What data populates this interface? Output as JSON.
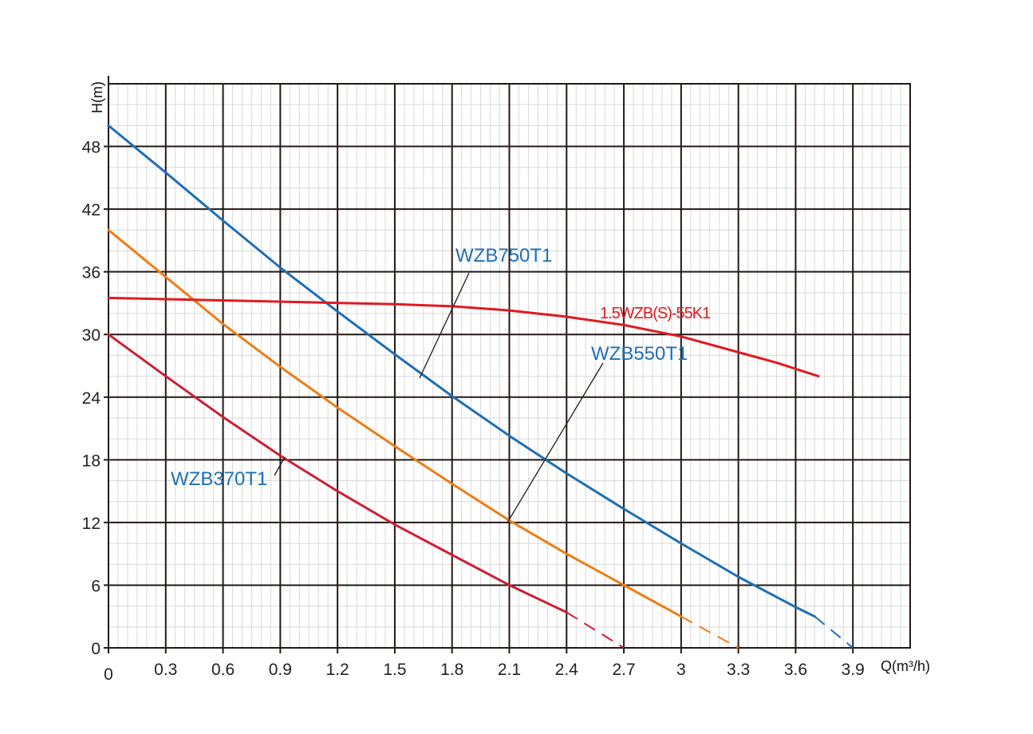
{
  "chart_data": {
    "type": "line",
    "xlabel": "Q(m³/h)",
    "ylabel": "H(m)",
    "xlim": [
      0,
      4.2
    ],
    "ylim": [
      0,
      54
    ],
    "x_ticks": [
      "0",
      "0.3",
      "0.6",
      "0.9",
      "1.2",
      "1.5",
      "1.8",
      "2.1",
      "2.4",
      "2.7",
      "3",
      "3.3",
      "3.6",
      "3.9"
    ],
    "y_ticks": [
      "0",
      "6",
      "12",
      "18",
      "24",
      "30",
      "36",
      "42",
      "48"
    ],
    "grid": true,
    "series": [
      {
        "name": "WZB750T1",
        "color": "#1f6eb5",
        "x": [
          0,
          0.3,
          0.6,
          0.9,
          1.2,
          1.5,
          1.8,
          2.1,
          2.4,
          2.7,
          3.0,
          3.3,
          3.6,
          3.7
        ],
        "y": [
          50,
          45.5,
          40.9,
          36.4,
          32.2,
          28.1,
          24.1,
          20.3,
          16.7,
          13.3,
          10.0,
          6.8,
          3.9,
          3.0
        ],
        "dashed": {
          "x": [
            3.7,
            3.9
          ],
          "y": [
            3.0,
            0
          ]
        }
      },
      {
        "name": "WZB550T1",
        "color": "#ee7d14",
        "x": [
          0,
          0.3,
          0.6,
          0.9,
          1.2,
          1.5,
          1.8,
          2.1,
          2.4,
          2.7,
          3.0
        ],
        "y": [
          40,
          35.5,
          31.0,
          26.9,
          23.0,
          19.3,
          15.7,
          12.2,
          9.0,
          6.0,
          3.0
        ],
        "dashed": {
          "x": [
            3.0,
            3.3
          ],
          "y": [
            3.0,
            0
          ]
        }
      },
      {
        "name": "WZB370T1",
        "color": "#cc1f35",
        "x": [
          0,
          0.3,
          0.6,
          0.9,
          1.2,
          1.5,
          1.8,
          2.1,
          2.4
        ],
        "y": [
          30,
          26.0,
          22.1,
          18.4,
          15.0,
          11.8,
          8.9,
          6.0,
          3.4
        ],
        "dashed": {
          "x": [
            2.4,
            2.7
          ],
          "y": [
            3.4,
            0
          ]
        }
      },
      {
        "name": "1.5WZB(S)-55K1",
        "color": "#e01a22",
        "x": [
          0,
          0.5,
          1.0,
          1.5,
          1.8,
          2.1,
          2.4,
          2.7,
          3.0,
          3.3,
          3.5,
          3.72
        ],
        "y": [
          33.5,
          33.3,
          33.1,
          32.9,
          32.7,
          32.3,
          31.7,
          30.9,
          29.8,
          28.3,
          27.3,
          26.0
        ]
      }
    ],
    "annotations": [
      {
        "text": "WZB750T1",
        "color": "#1f6eb5"
      },
      {
        "text": "WZB550T1",
        "color": "#1f6eb5"
      },
      {
        "text": "WZB370T1",
        "color": "#1f6eb5"
      },
      {
        "text": "1.5WZB(S)-55K1",
        "color": "#e01a22"
      }
    ]
  }
}
